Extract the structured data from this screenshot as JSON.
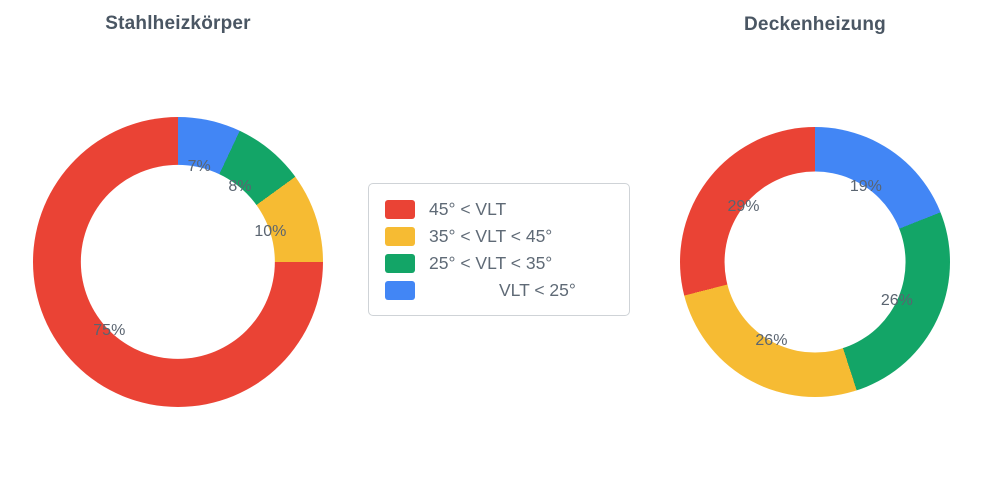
{
  "figure": {
    "background": "#ffffff"
  },
  "palette": {
    "red": "#EA4335",
    "yellow": "#F6BB33",
    "green": "#13A567",
    "blue": "#4286F5"
  },
  "legend": {
    "items": [
      {
        "label": "45° < VLT",
        "color": "#EA4335"
      },
      {
        "label": "35° < VLT < 45°",
        "color": "#F6BB33"
      },
      {
        "label": "25° < VLT < 35°",
        "color": "#13A567"
      },
      {
        "label": "VLT < 25°",
        "color": "#4286F5"
      }
    ]
  },
  "chart_data": [
    {
      "type": "pie",
      "title": "Stahlheizkörper",
      "labels": [
        "45° < VLT",
        "35° < VLT < 45°",
        "25° < VLT < 35°",
        "VLT < 25°"
      ],
      "values": [
        75,
        10,
        8,
        7
      ],
      "text_labels": [
        "75%",
        "10%",
        "8%",
        "7%"
      ],
      "colors": [
        "#EA4335",
        "#F6BB33",
        "#13A567",
        "#4286F5"
      ],
      "unit": "%",
      "hole": 0.67,
      "rotation_deg": 0,
      "direction": "counterclockwise",
      "legend_position": "center-between-charts"
    },
    {
      "type": "pie",
      "title": "Deckenheizung",
      "labels": [
        "45° < VLT",
        "35° < VLT < 45°",
        "25° < VLT < 35°",
        "VLT < 25°"
      ],
      "values": [
        29,
        26,
        26,
        19
      ],
      "text_labels": [
        "29%",
        "26%",
        "26%",
        "19%"
      ],
      "colors": [
        "#EA4335",
        "#F6BB33",
        "#13A567",
        "#4286F5"
      ],
      "unit": "%",
      "hole": 0.67,
      "rotation_deg": 0,
      "direction": "counterclockwise",
      "legend_position": "center-between-charts"
    }
  ]
}
